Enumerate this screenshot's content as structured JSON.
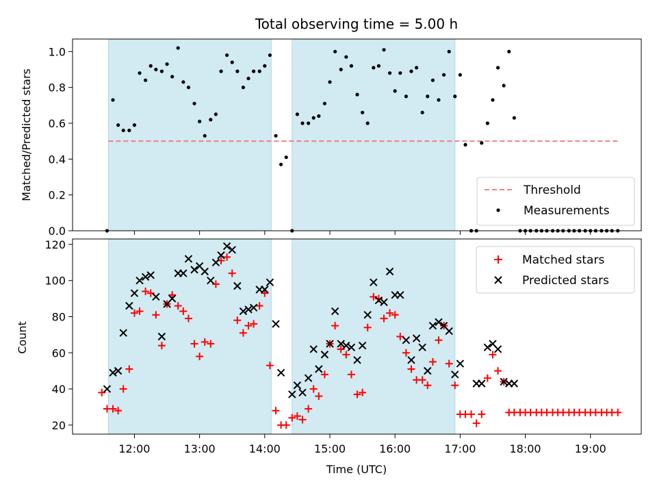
{
  "title": "Total observing time = 5.00 h",
  "top": {
    "ylabel": "Matched/Predicted stars",
    "ylim": [
      0,
      1.07
    ],
    "yticks": [
      "0.0",
      "0.2",
      "0.4",
      "0.6",
      "0.8",
      "1.0"
    ],
    "legend": {
      "threshold": "Threshold",
      "measurements": "Measurements"
    }
  },
  "bottom": {
    "ylabel": "Count",
    "ylim": [
      15,
      123
    ],
    "yticks": [
      "20",
      "40",
      "60",
      "80",
      "100",
      "120"
    ],
    "legend": {
      "matched": "Matched stars",
      "predicted": "Predicted stars"
    }
  },
  "xlabel": "Time (UTC)",
  "xticks": [
    "12:00",
    "13:00",
    "14:00",
    "15:00",
    "16:00",
    "17:00",
    "18:00",
    "19:00"
  ],
  "colors": {
    "shade": "#add8e6",
    "threshold": "#f08080",
    "matched": "#ff0000",
    "predicted": "#000000",
    "measurement": "#000000"
  },
  "chart_data": {
    "type": "scatter",
    "x_unit": "hours UTC",
    "xlim": [
      11.05,
      19.78
    ],
    "observing_windows": [
      [
        11.6,
        14.1
      ],
      [
        14.42,
        16.92
      ]
    ],
    "threshold": 0.5,
    "threshold_x_range": [
      11.6,
      19.45
    ],
    "measurements": {
      "x": [
        11.58,
        11.67,
        11.75,
        11.83,
        11.92,
        12.0,
        12.08,
        12.17,
        12.25,
        12.33,
        12.42,
        12.5,
        12.58,
        12.67,
        12.75,
        12.83,
        12.92,
        13.0,
        13.08,
        13.17,
        13.25,
        13.33,
        13.42,
        13.5,
        13.58,
        13.67,
        13.75,
        13.83,
        13.92,
        14.0,
        14.08,
        14.17,
        14.25,
        14.33,
        14.42,
        14.5,
        14.58,
        14.67,
        14.75,
        14.83,
        14.92,
        15.0,
        15.08,
        15.17,
        15.25,
        15.33,
        15.42,
        15.5,
        15.58,
        15.67,
        15.75,
        15.83,
        15.92,
        16.0,
        16.08,
        16.17,
        16.25,
        16.33,
        16.42,
        16.5,
        16.58,
        16.67,
        16.75,
        16.83,
        16.92,
        17.0,
        17.08,
        17.17,
        17.25,
        17.33,
        17.42,
        17.5,
        17.58,
        17.67,
        17.75,
        17.83,
        17.92,
        18.0,
        18.08,
        18.17,
        18.25,
        18.33,
        18.42,
        18.5,
        18.58,
        18.67,
        18.75,
        18.83,
        18.92,
        19.0,
        19.08,
        19.17,
        19.25,
        19.33,
        19.42
      ],
      "y": [
        0.0,
        0.73,
        0.59,
        0.56,
        0.56,
        0.59,
        0.88,
        0.84,
        0.92,
        0.9,
        0.89,
        0.93,
        0.86,
        1.02,
        0.83,
        0.8,
        0.71,
        0.61,
        0.53,
        0.62,
        0.65,
        0.89,
        0.98,
        0.94,
        0.89,
        0.8,
        0.85,
        0.89,
        0.89,
        0.92,
        0.98,
        0.53,
        0.37,
        0.41,
        0.0,
        0.65,
        0.6,
        0.6,
        0.63,
        0.64,
        0.71,
        0.83,
        1.0,
        0.9,
        0.97,
        0.92,
        0.76,
        0.66,
        0.6,
        0.91,
        0.92,
        1.01,
        0.88,
        0.78,
        0.88,
        0.75,
        0.89,
        0.91,
        0.66,
        0.75,
        0.84,
        0.73,
        0.87,
        1.0,
        0.75,
        0.87,
        0.48,
        0.0,
        0.0,
        0.49,
        0.6,
        0.73,
        0.91,
        0.81,
        1.0,
        0.63,
        0.0,
        0.0,
        0.0,
        0.0,
        0.0,
        0.0,
        0.0,
        0.0,
        0.0,
        0.0,
        0.0,
        0.0,
        0.0,
        0.0,
        0.0,
        0.0,
        0.0,
        0.0,
        0.0
      ]
    },
    "matched": {
      "x": [
        11.5,
        11.58,
        11.67,
        11.75,
        11.83,
        11.92,
        12.0,
        12.08,
        12.17,
        12.25,
        12.33,
        12.42,
        12.5,
        12.58,
        12.67,
        12.75,
        12.83,
        12.92,
        13.0,
        13.08,
        13.17,
        13.25,
        13.33,
        13.42,
        13.5,
        13.58,
        13.67,
        13.75,
        13.83,
        13.92,
        14.0,
        14.08,
        14.17,
        14.25,
        14.33,
        14.42,
        14.5,
        14.58,
        14.67,
        14.75,
        14.83,
        14.92,
        15.0,
        15.08,
        15.17,
        15.25,
        15.33,
        15.42,
        15.5,
        15.58,
        15.67,
        15.75,
        15.83,
        15.92,
        16.0,
        16.08,
        16.17,
        16.25,
        16.33,
        16.42,
        16.5,
        16.58,
        16.67,
        16.75,
        16.83,
        16.92,
        17.0,
        17.08,
        17.17,
        17.25,
        17.33,
        17.42,
        17.5,
        17.58,
        17.67,
        17.75,
        17.83,
        17.92,
        18.0,
        18.08,
        18.17,
        18.25,
        18.33,
        18.42,
        18.5,
        18.58,
        18.67,
        18.75,
        18.83,
        18.92,
        19.0,
        19.08,
        19.17,
        19.25,
        19.33,
        19.42
      ],
      "y": [
        38,
        29,
        29,
        28,
        40,
        51,
        82,
        83,
        94,
        93,
        81,
        64,
        87,
        92,
        86,
        83,
        79,
        65,
        58,
        66,
        65,
        98,
        111,
        113,
        104,
        78,
        71,
        75,
        76,
        86,
        93,
        53,
        28,
        20,
        20,
        24,
        25,
        23,
        29,
        40,
        36,
        48,
        65,
        75,
        62,
        59,
        48,
        37,
        38,
        74,
        91,
        90,
        79,
        82,
        81,
        69,
        60,
        51,
        45,
        45,
        42,
        55,
        67,
        75,
        54,
        42,
        26,
        26,
        26,
        21,
        26,
        46,
        59,
        50,
        44,
        27,
        27,
        27,
        27,
        27,
        27,
        27,
        27,
        27,
        27,
        27,
        27,
        27,
        27,
        27,
        27,
        27,
        27,
        27,
        27,
        27
      ]
    },
    "predicted": {
      "x": [
        11.58,
        11.67,
        11.75,
        11.83,
        11.92,
        12.0,
        12.08,
        12.17,
        12.25,
        12.33,
        12.42,
        12.5,
        12.58,
        12.67,
        12.75,
        12.83,
        12.92,
        13.0,
        13.08,
        13.17,
        13.25,
        13.33,
        13.42,
        13.5,
        13.58,
        13.67,
        13.75,
        13.83,
        13.92,
        14.0,
        14.08,
        14.17,
        14.25,
        14.42,
        14.5,
        14.58,
        14.67,
        14.75,
        14.83,
        14.92,
        15.0,
        15.08,
        15.17,
        15.25,
        15.33,
        15.42,
        15.5,
        15.58,
        15.67,
        15.75,
        15.83,
        15.92,
        16.0,
        16.08,
        16.17,
        16.25,
        16.33,
        16.42,
        16.5,
        16.58,
        16.67,
        16.75,
        16.83,
        16.92,
        17.0,
        17.25,
        17.33,
        17.42,
        17.5,
        17.58,
        17.67,
        17.75,
        17.83
      ],
      "y": [
        40,
        49,
        50,
        71,
        86,
        93,
        100,
        102,
        103,
        91,
        69,
        87,
        90,
        104,
        104,
        112,
        106,
        108,
        105,
        100,
        110,
        114,
        119,
        117,
        97,
        83,
        84,
        85,
        95,
        95,
        99,
        76,
        49,
        37,
        42,
        38,
        46,
        62,
        51,
        59,
        65,
        83,
        65,
        64,
        63,
        56,
        64,
        81,
        99,
        89,
        88,
        105,
        92,
        92,
        67,
        56,
        68,
        63,
        50,
        75,
        77,
        75,
        72,
        48,
        54,
        43,
        43,
        63,
        65,
        62,
        44,
        43,
        43
      ]
    }
  }
}
